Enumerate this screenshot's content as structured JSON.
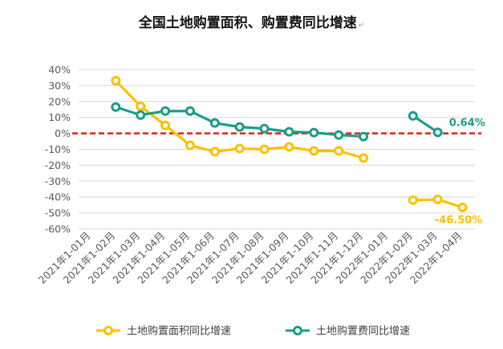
{
  "chart_data": {
    "type": "line",
    "title": "全国土地购置面积、购置费同比增速",
    "title_mark": "↵",
    "categories": [
      "2021年1-01月",
      "2021年1-02月",
      "2021年1-03月",
      "2021年1-04月",
      "2021年1-05月",
      "2021年1-06月",
      "2021年1-07月",
      "2021年1-08月",
      "2021年1-09月",
      "2021年1-10月",
      "2021年1-11月",
      "2021年1-12月",
      "2022年1-01月",
      "2022年1-02月",
      "2022年1-03月",
      "2022年1-04月"
    ],
    "y_ticks": [
      "40%",
      "30%",
      "20%",
      "10%",
      "0%",
      "-10%",
      "-20%",
      "-30%",
      "-40%",
      "-50%",
      "-60%"
    ],
    "ylim": [
      -60,
      40
    ],
    "grid": true,
    "reference_line": 0,
    "legend_position": "bottom",
    "series": [
      {
        "name": "土地购置面积同比增速",
        "color": "#FFC000",
        "values": [
          null,
          33,
          17,
          5,
          -7.5,
          -11.5,
          -9.5,
          -10,
          -8.5,
          -11,
          -11,
          -15.5,
          null,
          -42,
          -41.5,
          -46.5
        ],
        "end_label": "-46.50%"
      },
      {
        "name": "土地购置费同比增速",
        "color": "#1B9E86",
        "values": [
          null,
          16.5,
          11.5,
          14,
          14,
          6.5,
          4,
          3,
          1,
          0.5,
          -1,
          -2,
          null,
          11,
          0.64,
          null
        ],
        "end_label": "0.64%"
      }
    ]
  }
}
